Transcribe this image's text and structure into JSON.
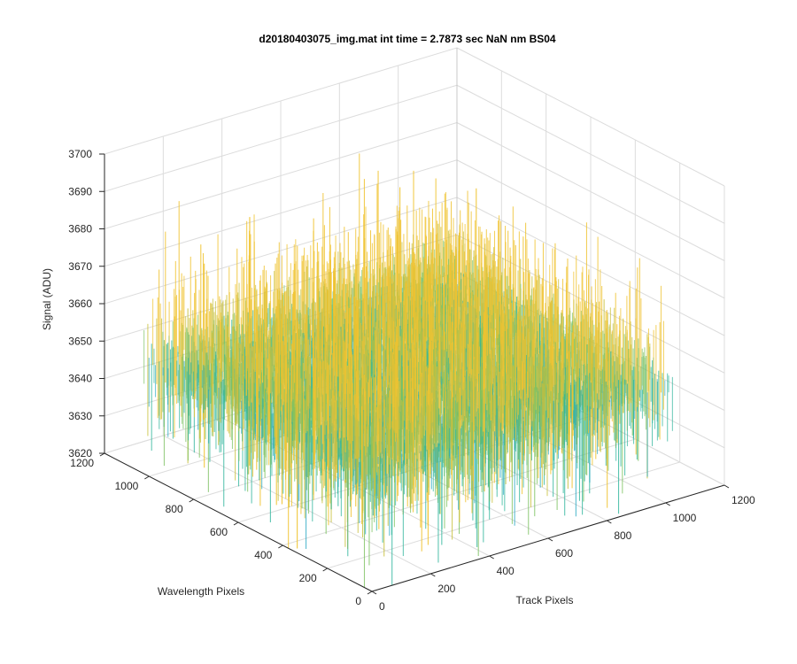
{
  "chart_data": {
    "type": "surface",
    "title": "d20180403075_img.mat int time = 2.7873 sec  NaN nm BS04",
    "xlabel": "Track Pixels",
    "ylabel": "Wavelength Pixels",
    "zlabel": "Signal (ADU)",
    "xlim": [
      0,
      1200
    ],
    "ylim": [
      0,
      1200
    ],
    "zlim": [
      3620,
      3700
    ],
    "x_ticks": [
      "0",
      "200",
      "400",
      "600",
      "800",
      "1000",
      "1200"
    ],
    "y_ticks": [
      "0",
      "200",
      "400",
      "600",
      "800",
      "1000",
      "1200"
    ],
    "z_ticks": [
      "3620",
      "3630",
      "3640",
      "3650",
      "3660",
      "3670",
      "3680",
      "3690",
      "3700"
    ],
    "surface_extent": {
      "x": [
        1,
        1024
      ],
      "y": [
        1,
        1024
      ]
    },
    "signal_mean": 3650,
    "signal_spread": 12,
    "signal_min": 3620,
    "signal_max": 3690,
    "colormap": [
      "#0072bd",
      "#1e90d8",
      "#21a5c0",
      "#2bb49a",
      "#7cc261",
      "#c8c03a",
      "#f0c330"
    ],
    "grid": true
  }
}
